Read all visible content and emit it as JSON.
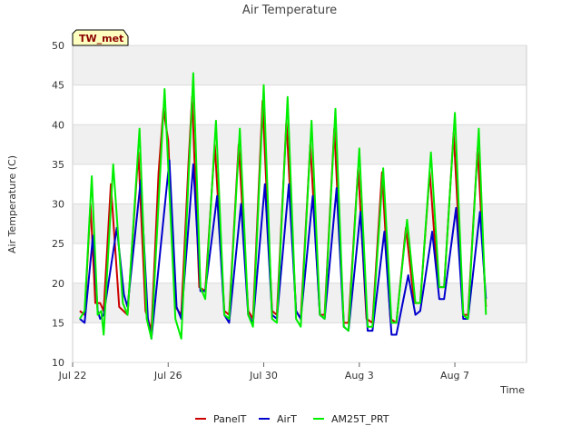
{
  "chart_data": {
    "type": "line",
    "title": "Air Temperature",
    "xlabel": "Time",
    "ylabel": "Air Temperature (C)",
    "badge": "TW_met",
    "ylim": [
      10,
      50
    ],
    "yticks": [
      10,
      15,
      20,
      25,
      30,
      35,
      40,
      45,
      50
    ],
    "xlim": [
      0,
      19
    ],
    "xticks": [
      {
        "x": 0,
        "label": "Jul 22"
      },
      {
        "x": 4,
        "label": "Jul 26"
      },
      {
        "x": 8,
        "label": "Jul 30"
      },
      {
        "x": 12,
        "label": "Aug 3"
      },
      {
        "x": 16,
        "label": "Aug 7"
      }
    ],
    "x_units": "days since Jul 22",
    "grid": true,
    "legend_position": "bottom",
    "series": [
      {
        "name": "PanelT",
        "color": "#cc0000",
        "points": [
          [
            0.3,
            16.5
          ],
          [
            0.5,
            16.0
          ],
          [
            0.75,
            30.0
          ],
          [
            0.95,
            17.5
          ],
          [
            1.15,
            17.5
          ],
          [
            1.3,
            16.5
          ],
          [
            1.6,
            32.5
          ],
          [
            1.95,
            17.0
          ],
          [
            2.3,
            16.0
          ],
          [
            2.75,
            36.5
          ],
          [
            3.05,
            16.5
          ],
          [
            3.3,
            14.0
          ],
          [
            3.6,
            34.0
          ],
          [
            3.8,
            42.0
          ],
          [
            4.0,
            38.0
          ],
          [
            4.3,
            17.0
          ],
          [
            4.55,
            16.0
          ],
          [
            4.85,
            35.0
          ],
          [
            5.0,
            43.5
          ],
          [
            5.3,
            19.5
          ],
          [
            5.55,
            19.0
          ],
          [
            5.95,
            37.5
          ],
          [
            6.35,
            16.5
          ],
          [
            6.55,
            16.0
          ],
          [
            6.95,
            37.5
          ],
          [
            7.35,
            16.5
          ],
          [
            7.55,
            15.5
          ],
          [
            7.95,
            43.0
          ],
          [
            8.35,
            16.5
          ],
          [
            8.55,
            16.0
          ],
          [
            8.95,
            40.5
          ],
          [
            9.35,
            16.5
          ],
          [
            9.55,
            15.5
          ],
          [
            9.95,
            37.5
          ],
          [
            10.35,
            16.0
          ],
          [
            10.55,
            16.0
          ],
          [
            10.95,
            39.5
          ],
          [
            11.35,
            15.0
          ],
          [
            11.55,
            15.0
          ],
          [
            11.95,
            34.5
          ],
          [
            12.3,
            15.5
          ],
          [
            12.55,
            15.0
          ],
          [
            12.95,
            34.0
          ],
          [
            13.3,
            15.5
          ],
          [
            13.55,
            15.0
          ],
          [
            13.95,
            27.0
          ],
          [
            14.3,
            17.5
          ],
          [
            14.55,
            17.5
          ],
          [
            14.95,
            34.0
          ],
          [
            15.3,
            19.5
          ],
          [
            15.55,
            19.5
          ],
          [
            15.95,
            39.0
          ],
          [
            16.35,
            16.0
          ],
          [
            16.55,
            16.0
          ],
          [
            16.95,
            37.0
          ],
          [
            17.3,
            17.0
          ]
        ]
      },
      {
        "name": "AirT",
        "color": "#0000cc",
        "points": [
          [
            0.3,
            15.5
          ],
          [
            0.5,
            15.0
          ],
          [
            0.85,
            26.0
          ],
          [
            1.05,
            16.5
          ],
          [
            1.15,
            15.5
          ],
          [
            1.3,
            16.0
          ],
          [
            1.85,
            27.0
          ],
          [
            2.15,
            18.5
          ],
          [
            2.3,
            17.0
          ],
          [
            2.85,
            33.0
          ],
          [
            3.15,
            15.5
          ],
          [
            3.3,
            13.0
          ],
          [
            4.05,
            35.5
          ],
          [
            4.35,
            17.0
          ],
          [
            4.55,
            15.5
          ],
          [
            5.05,
            35.0
          ],
          [
            5.35,
            19.0
          ],
          [
            5.55,
            19.0
          ],
          [
            6.05,
            31.0
          ],
          [
            6.35,
            16.0
          ],
          [
            6.55,
            15.0
          ],
          [
            7.05,
            30.0
          ],
          [
            7.35,
            16.0
          ],
          [
            7.55,
            15.0
          ],
          [
            8.05,
            32.5
          ],
          [
            8.35,
            16.0
          ],
          [
            8.55,
            15.5
          ],
          [
            9.05,
            32.5
          ],
          [
            9.35,
            16.5
          ],
          [
            9.55,
            15.5
          ],
          [
            10.05,
            31.0
          ],
          [
            10.35,
            16.0
          ],
          [
            10.55,
            15.5
          ],
          [
            11.05,
            32.0
          ],
          [
            11.35,
            14.5
          ],
          [
            11.55,
            14.0
          ],
          [
            12.05,
            29.0
          ],
          [
            12.35,
            14.0
          ],
          [
            12.55,
            14.0
          ],
          [
            13.05,
            26.5
          ],
          [
            13.35,
            13.5
          ],
          [
            13.55,
            13.5
          ],
          [
            14.05,
            21.0
          ],
          [
            14.35,
            16.0
          ],
          [
            14.55,
            16.5
          ],
          [
            15.05,
            26.5
          ],
          [
            15.35,
            18.0
          ],
          [
            15.55,
            18.0
          ],
          [
            16.05,
            29.5
          ],
          [
            16.35,
            15.5
          ],
          [
            16.55,
            15.5
          ],
          [
            17.05,
            29.0
          ],
          [
            17.3,
            18.0
          ]
        ]
      },
      {
        "name": "AM25T_PRT",
        "color": "#00ee00",
        "points": [
          [
            0.3,
            15.5
          ],
          [
            0.5,
            16.5
          ],
          [
            0.8,
            33.5
          ],
          [
            1.05,
            16.0
          ],
          [
            1.2,
            16.5
          ],
          [
            1.3,
            13.5
          ],
          [
            1.7,
            35.0
          ],
          [
            2.1,
            17.5
          ],
          [
            2.3,
            16.0
          ],
          [
            2.8,
            39.5
          ],
          [
            3.1,
            15.5
          ],
          [
            3.3,
            13.0
          ],
          [
            3.85,
            44.5
          ],
          [
            4.3,
            15.5
          ],
          [
            4.55,
            13.0
          ],
          [
            5.05,
            46.5
          ],
          [
            5.35,
            19.5
          ],
          [
            5.55,
            18.0
          ],
          [
            6.0,
            40.5
          ],
          [
            6.35,
            16.0
          ],
          [
            6.55,
            15.5
          ],
          [
            7.0,
            39.5
          ],
          [
            7.35,
            16.0
          ],
          [
            7.55,
            14.5
          ],
          [
            8.0,
            45.0
          ],
          [
            8.35,
            15.5
          ],
          [
            8.55,
            15.0
          ],
          [
            9.0,
            43.5
          ],
          [
            9.35,
            15.5
          ],
          [
            9.55,
            14.5
          ],
          [
            10.0,
            40.5
          ],
          [
            10.35,
            16.0
          ],
          [
            10.55,
            15.5
          ],
          [
            11.0,
            42.0
          ],
          [
            11.35,
            14.5
          ],
          [
            11.55,
            14.0
          ],
          [
            12.0,
            37.0
          ],
          [
            12.35,
            14.5
          ],
          [
            12.55,
            14.5
          ],
          [
            13.0,
            34.5
          ],
          [
            13.35,
            15.0
          ],
          [
            13.55,
            15.0
          ],
          [
            14.0,
            28.0
          ],
          [
            14.35,
            17.5
          ],
          [
            14.55,
            17.5
          ],
          [
            15.0,
            36.5
          ],
          [
            15.35,
            19.5
          ],
          [
            15.55,
            19.5
          ],
          [
            16.0,
            41.5
          ],
          [
            16.35,
            16.0
          ],
          [
            16.55,
            15.5
          ],
          [
            17.0,
            39.5
          ],
          [
            17.3,
            16.0
          ]
        ]
      }
    ]
  }
}
